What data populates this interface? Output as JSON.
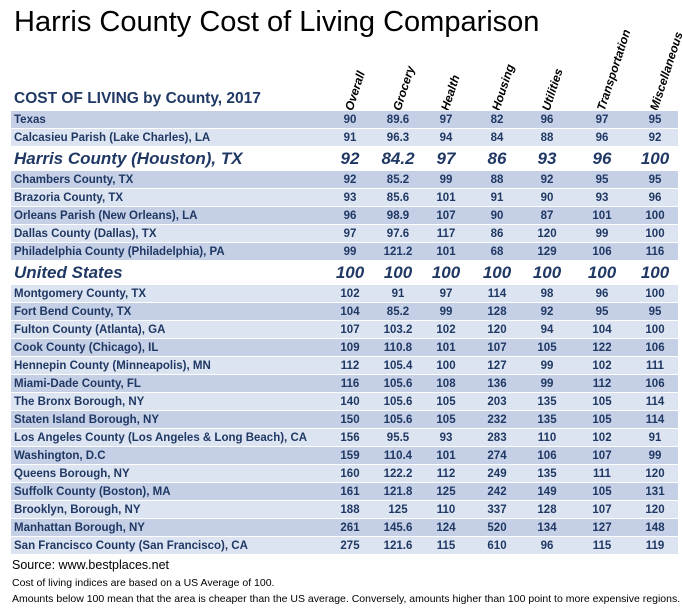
{
  "title": "Harris County Cost of Living Comparison",
  "subtitle": "COST OF LIVING by County, 2017",
  "source": "Source: www.bestplaces.net",
  "note1": "Cost of living indices are based on a US Average of 100.",
  "note2": "Amounts below 100 mean that the area is cheaper than the US average.  Conversely, amounts higher than 100 point to more expensive regions.",
  "chart_data": {
    "type": "table",
    "title": "Harris County Cost of Living Comparison",
    "subtitle": "COST OF LIVING by County, 2017",
    "columns": [
      "Overall",
      "Grocery",
      "Health",
      "Housing",
      "Utilities",
      "Transportation",
      "Miscellaneous"
    ],
    "rows": [
      {
        "name": "Texas",
        "values": [
          "90",
          "89.6",
          "97",
          "82",
          "96",
          "97",
          "95"
        ],
        "emphasis": false
      },
      {
        "name": "Calcasieu Parish (Lake Charles), LA",
        "values": [
          "91",
          "96.3",
          "94",
          "84",
          "88",
          "96",
          "92"
        ],
        "emphasis": false
      },
      {
        "name": "Harris County (Houston), TX",
        "values": [
          "92",
          "84.2",
          "97",
          "86",
          "93",
          "96",
          "100"
        ],
        "emphasis": true
      },
      {
        "name": "Chambers County, TX",
        "values": [
          "92",
          "85.2",
          "99",
          "88",
          "92",
          "95",
          "95"
        ],
        "emphasis": false
      },
      {
        "name": "Brazoria County, TX",
        "values": [
          "93",
          "85.6",
          "101",
          "91",
          "90",
          "93",
          "96"
        ],
        "emphasis": false
      },
      {
        "name": "Orleans Parish (New Orleans), LA",
        "values": [
          "96",
          "98.9",
          "107",
          "90",
          "87",
          "101",
          "100"
        ],
        "emphasis": false
      },
      {
        "name": "Dallas County (Dallas), TX",
        "values": [
          "97",
          "97.6",
          "117",
          "86",
          "120",
          "99",
          "100"
        ],
        "emphasis": false
      },
      {
        "name": "Philadelphia County (Philadelphia), PA",
        "values": [
          "99",
          "121.2",
          "101",
          "68",
          "129",
          "106",
          "116"
        ],
        "emphasis": false
      },
      {
        "name": "United States",
        "values": [
          "100",
          "100",
          "100",
          "100",
          "100",
          "100",
          "100"
        ],
        "emphasis": true
      },
      {
        "name": "Montgomery County, TX",
        "values": [
          "102",
          "91",
          "97",
          "114",
          "98",
          "96",
          "100"
        ],
        "emphasis": false
      },
      {
        "name": "Fort Bend County, TX",
        "values": [
          "104",
          "85.2",
          "99",
          "128",
          "92",
          "95",
          "95"
        ],
        "emphasis": false
      },
      {
        "name": "Fulton County (Atlanta), GA",
        "values": [
          "107",
          "103.2",
          "102",
          "120",
          "94",
          "104",
          "100"
        ],
        "emphasis": false
      },
      {
        "name": "Cook County (Chicago), IL",
        "values": [
          "109",
          "110.8",
          "101",
          "107",
          "105",
          "122",
          "106"
        ],
        "emphasis": false
      },
      {
        "name": "Hennepin County (Minneapolis), MN",
        "values": [
          "112",
          "105.4",
          "100",
          "127",
          "99",
          "102",
          "111"
        ],
        "emphasis": false
      },
      {
        "name": "Miami-Dade County, FL",
        "values": [
          "116",
          "105.6",
          "108",
          "136",
          "99",
          "112",
          "106"
        ],
        "emphasis": false
      },
      {
        "name": "The Bronx Borough, NY",
        "values": [
          "140",
          "105.6",
          "105",
          "203",
          "135",
          "105",
          "114"
        ],
        "emphasis": false
      },
      {
        "name": "Staten Island Borough, NY",
        "values": [
          "150",
          "105.6",
          "105",
          "232",
          "135",
          "105",
          "114"
        ],
        "emphasis": false
      },
      {
        "name": "Los Angeles County (Los Angeles & Long Beach), CA",
        "values": [
          "156",
          "95.5",
          "93",
          "283",
          "110",
          "102",
          "91"
        ],
        "emphasis": false
      },
      {
        "name": "Washington, D.C",
        "values": [
          "159",
          "110.4",
          "101",
          "274",
          "106",
          "107",
          "99"
        ],
        "emphasis": false
      },
      {
        "name": "Queens Borough, NY",
        "values": [
          "160",
          "122.2",
          "112",
          "249",
          "135",
          "111",
          "120"
        ],
        "emphasis": false
      },
      {
        "name": "Suffolk County (Boston), MA",
        "values": [
          "161",
          "121.8",
          "125",
          "242",
          "149",
          "105",
          "131"
        ],
        "emphasis": false
      },
      {
        "name": "Brooklyn, Borough, NY",
        "values": [
          "188",
          "125",
          "110",
          "337",
          "128",
          "107",
          "120"
        ],
        "emphasis": false
      },
      {
        "name": "Manhattan Borough, NY",
        "values": [
          "261",
          "145.6",
          "124",
          "520",
          "134",
          "127",
          "148"
        ],
        "emphasis": false
      },
      {
        "name": "San Francisco County (San Francisco), CA",
        "values": [
          "275",
          "121.6",
          "115",
          "610",
          "96",
          "115",
          "119"
        ],
        "emphasis": false
      }
    ]
  }
}
